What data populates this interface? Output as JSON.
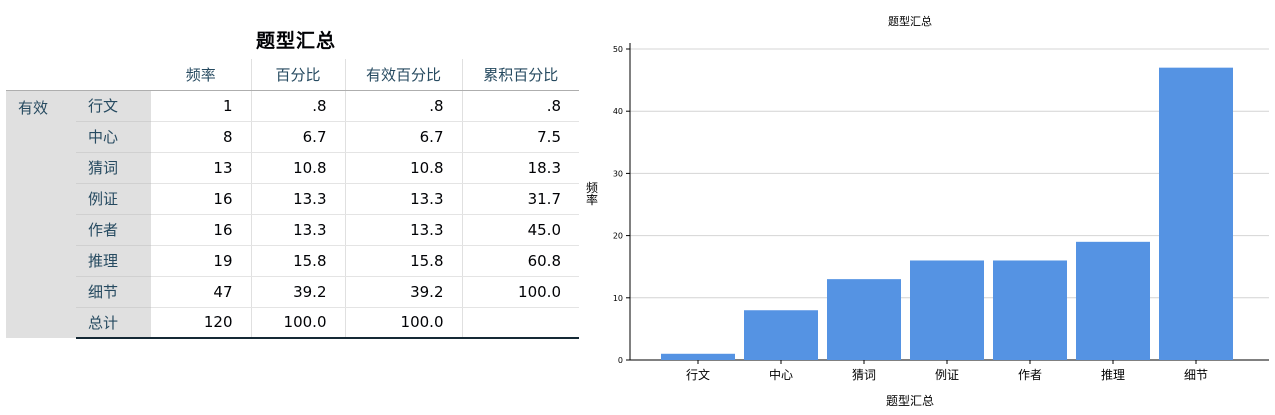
{
  "table": {
    "title": "题型汇总",
    "headers": [
      "频率",
      "百分比",
      "有效百分比",
      "累积百分比"
    ],
    "group_label": "有效",
    "rows": [
      {
        "label": "行文",
        "freq": "1",
        "pct": ".8",
        "valid_pct": ".8",
        "cum_pct": ".8"
      },
      {
        "label": "中心",
        "freq": "8",
        "pct": "6.7",
        "valid_pct": "6.7",
        "cum_pct": "7.5"
      },
      {
        "label": "猜词",
        "freq": "13",
        "pct": "10.8",
        "valid_pct": "10.8",
        "cum_pct": "18.3"
      },
      {
        "label": "例证",
        "freq": "16",
        "pct": "13.3",
        "valid_pct": "13.3",
        "cum_pct": "31.7"
      },
      {
        "label": "作者",
        "freq": "16",
        "pct": "13.3",
        "valid_pct": "13.3",
        "cum_pct": "45.0"
      },
      {
        "label": "推理",
        "freq": "19",
        "pct": "15.8",
        "valid_pct": "15.8",
        "cum_pct": "60.8"
      },
      {
        "label": "细节",
        "freq": "47",
        "pct": "39.2",
        "valid_pct": "39.2",
        "cum_pct": "100.0"
      },
      {
        "label": "总计",
        "freq": "120",
        "pct": "100.0",
        "valid_pct": "100.0",
        "cum_pct": ""
      }
    ]
  },
  "chart_data": {
    "type": "bar",
    "title": "题型汇总",
    "xlabel": "题型汇总",
    "ylabel": "频率",
    "categories": [
      "行文",
      "中心",
      "猜词",
      "例证",
      "作者",
      "推理",
      "细节"
    ],
    "values": [
      1,
      8,
      13,
      16,
      16,
      19,
      47
    ],
    "ylim": [
      0,
      50
    ],
    "yticks": [
      0,
      10,
      20,
      30,
      40,
      50
    ],
    "grid": true,
    "bar_color": "#5593e3"
  }
}
